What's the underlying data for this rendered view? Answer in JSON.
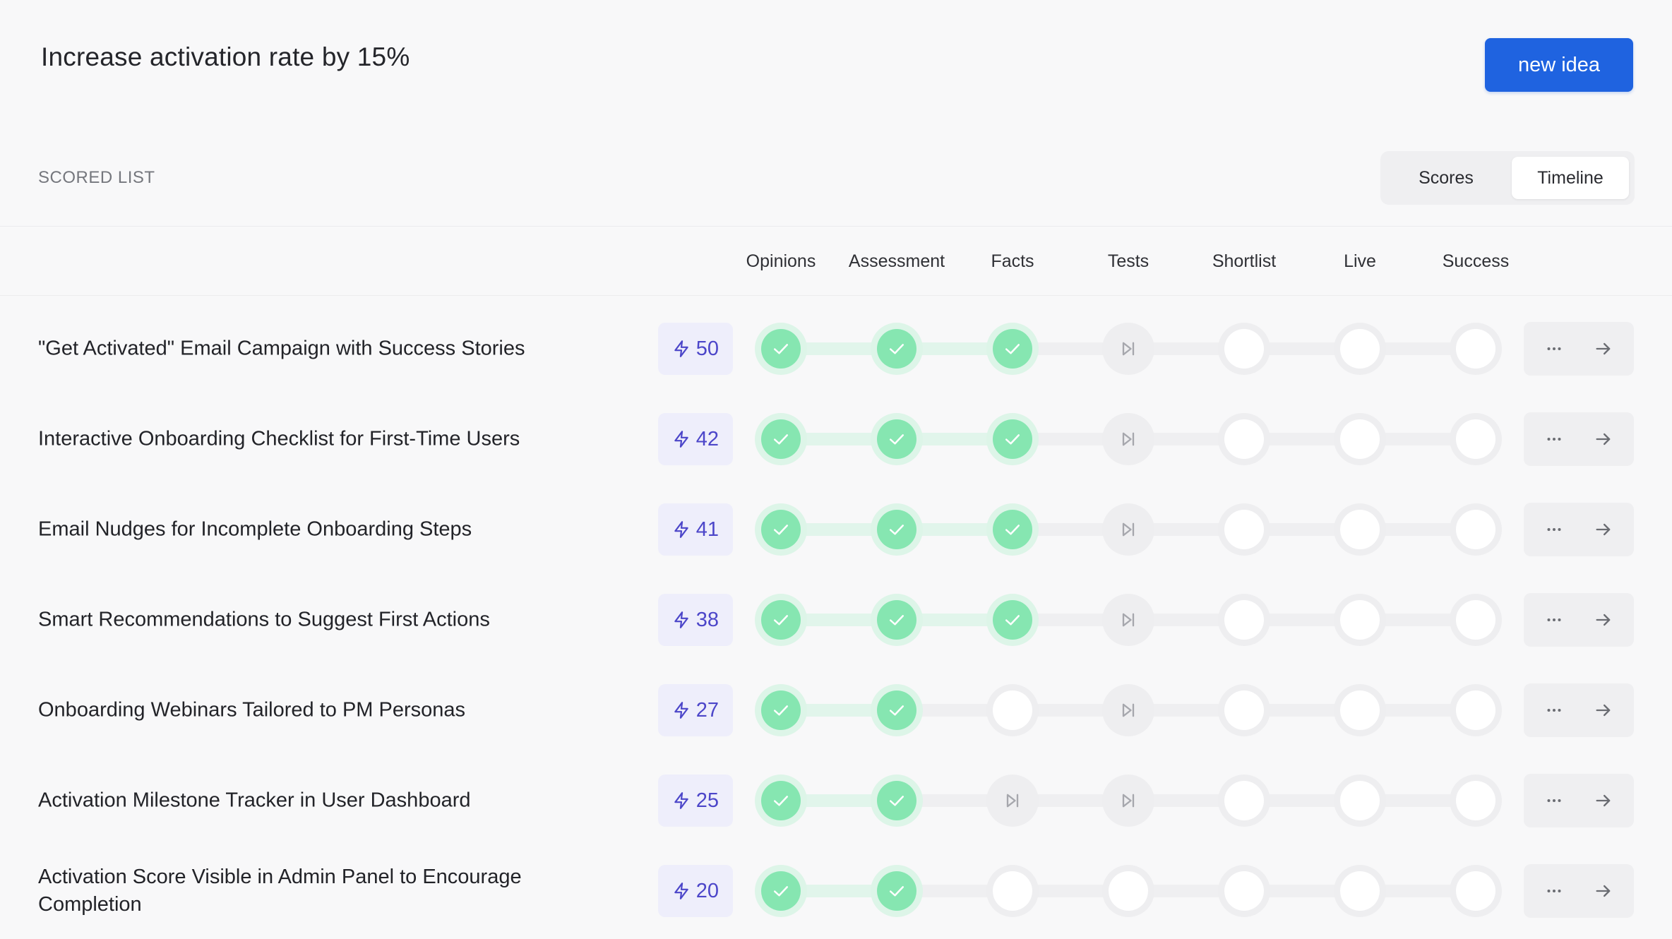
{
  "header": {
    "title": "Increase activation rate by 15%",
    "new_idea_label": "new idea"
  },
  "section": {
    "label": "SCORED LIST"
  },
  "view_toggle": {
    "options": [
      "Scores",
      "Timeline"
    ],
    "selected": "Timeline"
  },
  "columns": [
    "Opinions",
    "Assessment",
    "Facts",
    "Tests",
    "Shortlist",
    "Live",
    "Success"
  ],
  "colors": {
    "accent": "#1f63e0",
    "score_text": "#4c46c9",
    "score_bg": "#eeeefb",
    "done": "#86e6b1",
    "done_ring": "#ddf5e8"
  },
  "ideas": [
    {
      "title": "\"Get Activated\" Email Campaign with Success Stories",
      "score": "50",
      "stages": [
        "done",
        "done",
        "done",
        "skip",
        "empty",
        "empty",
        "empty"
      ]
    },
    {
      "title": "Interactive Onboarding Checklist for First-Time Users",
      "score": "42",
      "stages": [
        "done",
        "done",
        "done",
        "skip",
        "empty",
        "empty",
        "empty"
      ]
    },
    {
      "title": "Email Nudges for Incomplete Onboarding Steps",
      "score": "41",
      "stages": [
        "done",
        "done",
        "done",
        "skip",
        "empty",
        "empty",
        "empty"
      ]
    },
    {
      "title": "Smart Recommendations to Suggest First Actions",
      "score": "38",
      "stages": [
        "done",
        "done",
        "done",
        "skip",
        "empty",
        "empty",
        "empty"
      ]
    },
    {
      "title": "Onboarding Webinars Tailored to PM Personas",
      "score": "27",
      "stages": [
        "done",
        "done",
        "empty",
        "skip",
        "empty",
        "empty",
        "empty"
      ]
    },
    {
      "title": "Activation Milestone Tracker in User Dashboard",
      "score": "25",
      "stages": [
        "done",
        "done",
        "skip",
        "skip",
        "empty",
        "empty",
        "empty"
      ]
    },
    {
      "title": "Activation Score Visible in Admin Panel to Encourage Completion",
      "score": "20",
      "stages": [
        "done",
        "done",
        "empty",
        "empty",
        "empty",
        "empty",
        "empty"
      ]
    }
  ],
  "icons": {
    "score": "lightning-icon",
    "done": "check-icon",
    "skip": "skip-forward-icon",
    "more": "more-horizontal-icon",
    "open": "arrow-right-icon"
  }
}
